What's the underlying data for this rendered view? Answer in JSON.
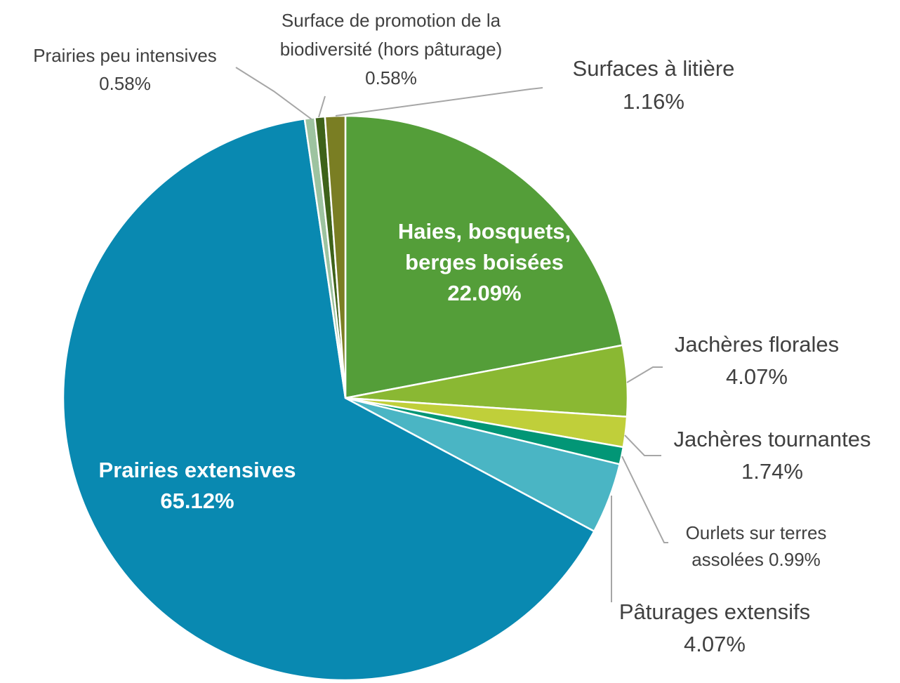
{
  "chart_data": {
    "type": "pie",
    "title": "",
    "start_angle_deg": 0,
    "direction": "clockwise",
    "slices": [
      {
        "label": [
          "Haies, bosquets,",
          "berges boisées"
        ],
        "value": 22.09,
        "value_label": "22.09%",
        "color": "#549E39",
        "label_position": "inside"
      },
      {
        "label": [
          "Jachères florales"
        ],
        "value": 4.07,
        "value_label": "4.07%",
        "color": "#8AB833",
        "label_position": "outside"
      },
      {
        "label": [
          "Jachères tournantes"
        ],
        "value": 1.74,
        "value_label": "1.74%",
        "color": "#C0CF3A",
        "label_position": "outside"
      },
      {
        "label": [
          "Ourlets sur terres",
          "assolées 0.99%"
        ],
        "value": 0.99,
        "value_label": "",
        "color": "#029676",
        "label_position": "outside"
      },
      {
        "label": [
          "Pâturages extensifs"
        ],
        "value": 4.07,
        "value_label": "4.07%",
        "color": "#4AB5C4",
        "label_position": "outside"
      },
      {
        "label": [
          "Prairies extensives"
        ],
        "value": 65.12,
        "value_label": "65.12%",
        "color": "#0989B1",
        "label_position": "inside"
      },
      {
        "label": [
          "Prairies peu intensives"
        ],
        "value": 0.58,
        "value_label": "0.58%",
        "color": "#9DC3A0",
        "label_position": "outside"
      },
      {
        "label": [
          "Surface de promotion de la",
          "biodiversité (hors pâturage)"
        ],
        "value": 0.58,
        "value_label": "0.58%",
        "color": "#3E6219",
        "label_position": "outside"
      },
      {
        "label": [
          "Surfaces à litière"
        ],
        "value": 1.16,
        "value_label": "1.16%",
        "color": "#7A7E23",
        "label_position": "outside"
      }
    ],
    "legend": "none"
  }
}
